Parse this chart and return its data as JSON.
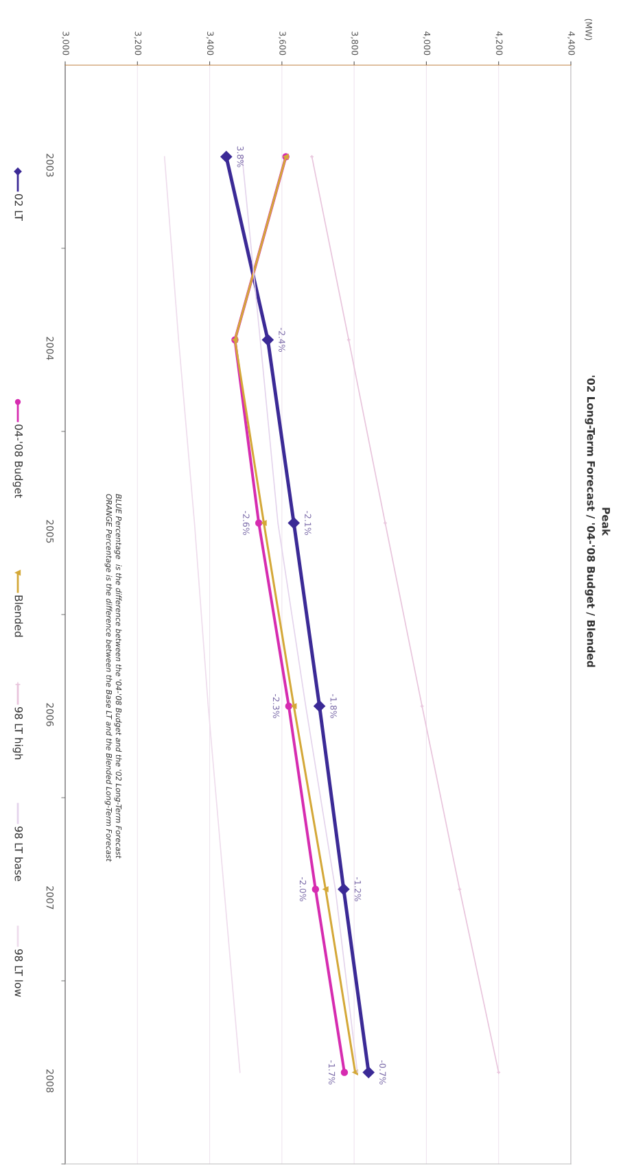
{
  "chart_data": {
    "type": "line",
    "orientation": "horizontal",
    "title": "Peak",
    "subtitle": "'02 Long-Term Forecast / '04-'08 Budget / Blended",
    "categories": [
      "2003",
      "2004",
      "2005",
      "2006",
      "2007",
      "2008"
    ],
    "xlim": [
      3000,
      4400
    ],
    "xticks": [
      {
        "value": 3000,
        "label": "3,000"
      },
      {
        "value": 3200,
        "label": "3,200"
      },
      {
        "value": 3400,
        "label": "3,400"
      },
      {
        "value": 3600,
        "label": "3,600"
      },
      {
        "value": 3800,
        "label": "3,800"
      },
      {
        "value": 4000,
        "label": "4,000"
      },
      {
        "value": 4200,
        "label": "4,200"
      },
      {
        "value": 4400,
        "label": "4,400"
      }
    ],
    "grid": "x",
    "legend": "left",
    "series": [
      {
        "name": "02 LT",
        "color": "#3b2a96",
        "marker": "diamond",
        "values": [
          3446,
          3561,
          3633,
          3704,
          3771,
          3840
        ]
      },
      {
        "name": "04-'08 Budget",
        "color": "#d62cb0",
        "marker": "circle",
        "values": [
          3611,
          3470,
          3536,
          3619,
          3693,
          3773
        ]
      },
      {
        "name": "Blended",
        "color": "#d4a838",
        "marker": "triangle",
        "values": [
          3611,
          3470,
          3550,
          3633,
          3721,
          3803
        ]
      },
      {
        "name": "98 LT high",
        "color": "#e8c4dc",
        "marker": "cross",
        "values": [
          3683,
          3785,
          3886,
          3988,
          4092,
          4200
        ]
      },
      {
        "name": "98 LT base",
        "color": "#e4d4ec",
        "marker": "none",
        "values": [
          3490,
          3540,
          3589,
          3666,
          3748,
          3809
        ]
      },
      {
        "name": "98 LT low",
        "color": "#eedcec",
        "marker": "none",
        "values": [
          3275,
          3314,
          3358,
          3396,
          3440,
          3484
        ]
      }
    ],
    "annotations": [
      "(MW)",
      {
        "text": "3.8%",
        "x": 3446,
        "y": "2003"
      },
      {
        "text": "-2.4%",
        "x": 3561,
        "y": "2004"
      },
      {
        "text": "-2.1%",
        "x": 3633,
        "y": "2005"
      },
      {
        "text": "-2.6%",
        "x": 3536,
        "y": "2005"
      },
      {
        "text": "-1.8%",
        "x": 3704,
        "y": "2006"
      },
      {
        "text": "-2.3%",
        "x": 3619,
        "y": "2006"
      },
      {
        "text": "-1.2%",
        "x": 3771,
        "y": "2007"
      },
      {
        "text": "-2.0%",
        "x": 3693,
        "y": "2007"
      },
      "BLUE Percentage  is the difference between the '04-'08 Budget and the '02 Long-Term Forecast",
      "ORANGE Percentage is the difference between the Base LT and the Blended Long-Term Forecast",
      "-0.7%",
      "-1.7%"
    ]
  }
}
